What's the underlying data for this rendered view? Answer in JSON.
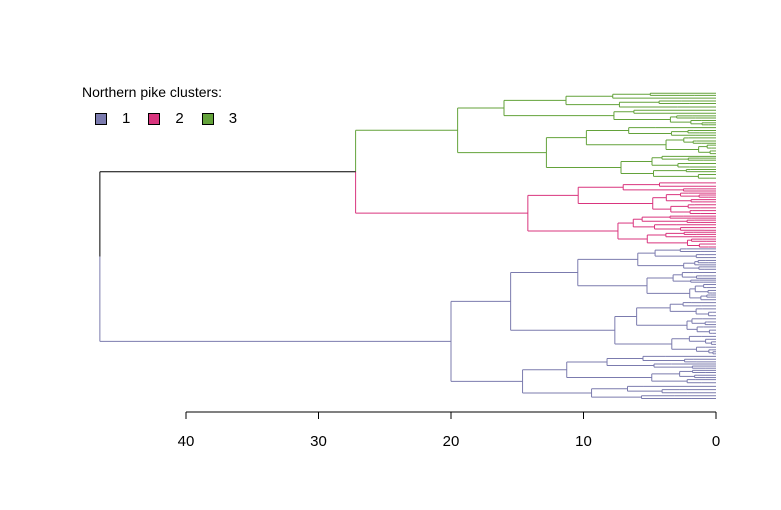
{
  "legend": {
    "title": "Northern pike clusters:",
    "items": [
      {
        "label": "1",
        "color": "#7B7BAE"
      },
      {
        "label": "2",
        "color": "#D9357E"
      },
      {
        "label": "3",
        "color": "#63A23A"
      }
    ]
  },
  "chart_data": {
    "type": "dendrogram",
    "orientation": "horizontal",
    "x_axis": {
      "ticks": [
        40,
        30,
        20,
        10,
        0
      ],
      "range": [
        40,
        0
      ],
      "reversed": true
    },
    "root_height": 46.5,
    "merges": [
      {
        "height": 46.5,
        "clusters": [
          "1",
          "2+3"
        ]
      },
      {
        "height": 27.2,
        "clusters": [
          "2",
          "3"
        ]
      },
      {
        "height": 20.0,
        "note": "cluster 1 first split"
      },
      {
        "height": 19.5,
        "note": "cluster 3 first split"
      },
      {
        "height": 14.2,
        "note": "cluster 2 first split"
      }
    ],
    "clusters": [
      {
        "id": "1",
        "color": "#7B7BAE"
      },
      {
        "id": "2",
        "color": "#D9357E"
      },
      {
        "id": "3",
        "color": "#63A23A"
      }
    ]
  }
}
